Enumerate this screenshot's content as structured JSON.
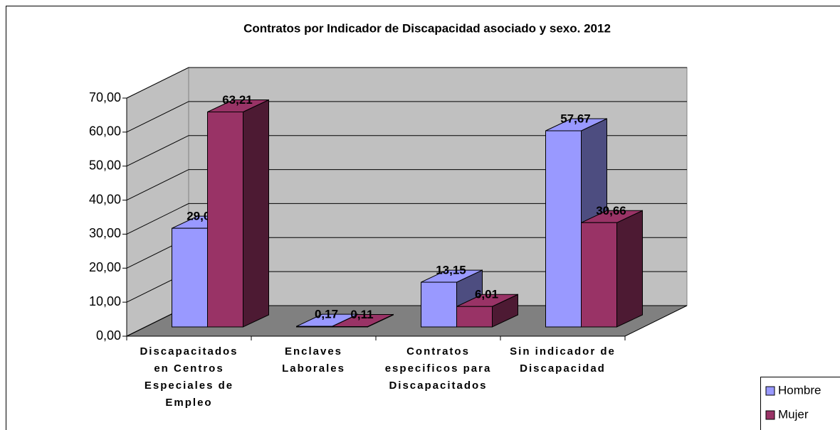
{
  "chart_data": {
    "type": "bar3d",
    "title": "Contratos por Indicador de Discapacidad asociado y sexo. 2012",
    "categories": [
      "Discapacitados en Centros Especiales de Empleo",
      "Enclaves Laborales",
      "Contratos especificos para Discapacitados",
      "Sin indicador de Discapacidad"
    ],
    "series": [
      {
        "name": "Hombre",
        "color": "#9999ff",
        "values": [
          29.01,
          0.17,
          13.15,
          57.67
        ],
        "value_labels": [
          "29,01",
          "0,17",
          "13,15",
          "57,67"
        ]
      },
      {
        "name": "Mujer",
        "color": "#993366",
        "values": [
          63.21,
          0.11,
          6.01,
          30.66
        ],
        "value_labels": [
          "63,21",
          "0,11",
          "6,01",
          "30,66"
        ]
      }
    ],
    "ylim": [
      0,
      70
    ],
    "yticks": [
      {
        "value": 0,
        "label": "0,00"
      },
      {
        "value": 10,
        "label": "10,00"
      },
      {
        "value": 20,
        "label": "20,00"
      },
      {
        "value": 30,
        "label": "30,00"
      },
      {
        "value": 40,
        "label": "40,00"
      },
      {
        "value": 50,
        "label": "50,00"
      },
      {
        "value": 60,
        "label": "60,00"
      },
      {
        "value": 70,
        "label": "70,00"
      }
    ],
    "grid": true,
    "legend": "lower right"
  }
}
